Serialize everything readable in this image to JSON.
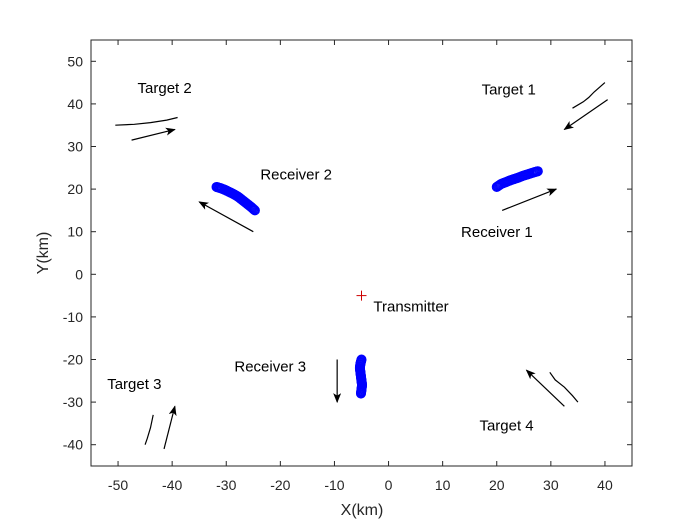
{
  "chart_data": {
    "type": "scatter",
    "xlabel": "X(km)",
    "ylabel": "Y(km)",
    "xlim": [
      -55,
      45
    ],
    "ylim": [
      -45,
      55
    ],
    "xticks": [
      -50,
      -40,
      -30,
      -20,
      -10,
      0,
      10,
      20,
      30,
      40
    ],
    "yticks": [
      -40,
      -30,
      -20,
      -10,
      0,
      10,
      20,
      30,
      40,
      50
    ],
    "grid": false,
    "colors": {
      "receiver": "#0000ff",
      "transmitter": "#cc0000",
      "line": "#000000",
      "axis": "#262626"
    },
    "transmitter": {
      "name": "Transmitter",
      "x": -5,
      "y": -5,
      "label_x": -2.8,
      "label_y": -8.7
    },
    "receivers": [
      {
        "name": "Receiver 1",
        "label_x": 13.4,
        "label_y": 8.8,
        "points": [
          [
            20,
            20.5
          ],
          [
            20.8,
            21.2
          ],
          [
            21.8,
            21.7
          ],
          [
            22.8,
            22.2
          ],
          [
            23.8,
            22.6
          ],
          [
            24.8,
            23.1
          ],
          [
            25.8,
            23.5
          ],
          [
            26.8,
            23.9
          ],
          [
            27.6,
            24.2
          ]
        ]
      },
      {
        "name": "Receiver 2",
        "label_x": -23.7,
        "label_y": 22.2,
        "points": [
          [
            -31.8,
            20.5
          ],
          [
            -31,
            20.2
          ],
          [
            -30.2,
            19.8
          ],
          [
            -29.4,
            19.3
          ],
          [
            -28.6,
            18.8
          ],
          [
            -27.8,
            18.2
          ],
          [
            -27,
            17.4
          ],
          [
            -26.2,
            16.6
          ],
          [
            -25.4,
            15.8
          ],
          [
            -24.7,
            15
          ]
        ]
      },
      {
        "name": "Receiver 3",
        "label_x": -28.5,
        "label_y": -22.8,
        "points": [
          [
            -5,
            -20
          ],
          [
            -5.2,
            -21
          ],
          [
            -5.3,
            -22
          ],
          [
            -5.2,
            -23
          ],
          [
            -5.1,
            -24
          ],
          [
            -5,
            -25
          ],
          [
            -4.9,
            -26
          ],
          [
            -5,
            -27
          ],
          [
            -5.1,
            -28
          ]
        ]
      }
    ],
    "targets": [
      {
        "name": "Target 1",
        "label_x": 17.2,
        "label_y": 42.2,
        "track": [
          [
            34,
            39
          ],
          [
            36,
            40.5
          ],
          [
            37,
            41.5
          ],
          [
            38,
            42.8
          ],
          [
            40,
            45
          ]
        ]
      },
      {
        "name": "Target 2",
        "label_x": -46.4,
        "label_y": 42.6,
        "track": [
          [
            -50.5,
            35
          ],
          [
            -47,
            35.2
          ],
          [
            -44,
            35.6
          ],
          [
            -41,
            36.2
          ],
          [
            -39,
            36.8
          ]
        ]
      },
      {
        "name": "Target 3",
        "label_x": -52,
        "label_y": -26.9,
        "track": [
          [
            -45,
            -40
          ],
          [
            -44.6,
            -38.5
          ],
          [
            -44,
            -36
          ],
          [
            -43.5,
            -33
          ]
        ]
      },
      {
        "name": "Target 4",
        "label_x": 16.8,
        "label_y": -36.7,
        "track": [
          [
            35,
            -30
          ],
          [
            34,
            -28.5
          ],
          [
            32.5,
            -26.5
          ],
          [
            30.8,
            -24.8
          ],
          [
            29.8,
            -23
          ]
        ]
      }
    ],
    "arrows": [
      {
        "from": [
          21,
          15
        ],
        "to": [
          31,
          20
        ]
      },
      {
        "from": [
          40.5,
          41
        ],
        "to": [
          32.5,
          34
        ]
      },
      {
        "from": [
          -47.5,
          31.5
        ],
        "to": [
          -39.5,
          34
        ]
      },
      {
        "from": [
          -25,
          10
        ],
        "to": [
          -35,
          17
        ]
      },
      {
        "from": [
          -9.5,
          -20
        ],
        "to": [
          -9.5,
          -30
        ]
      },
      {
        "from": [
          -41.5,
          -41
        ],
        "to": [
          -39.5,
          -31
        ]
      },
      {
        "from": [
          32.5,
          -31
        ],
        "to": [
          25.5,
          -22.5
        ]
      }
    ]
  }
}
